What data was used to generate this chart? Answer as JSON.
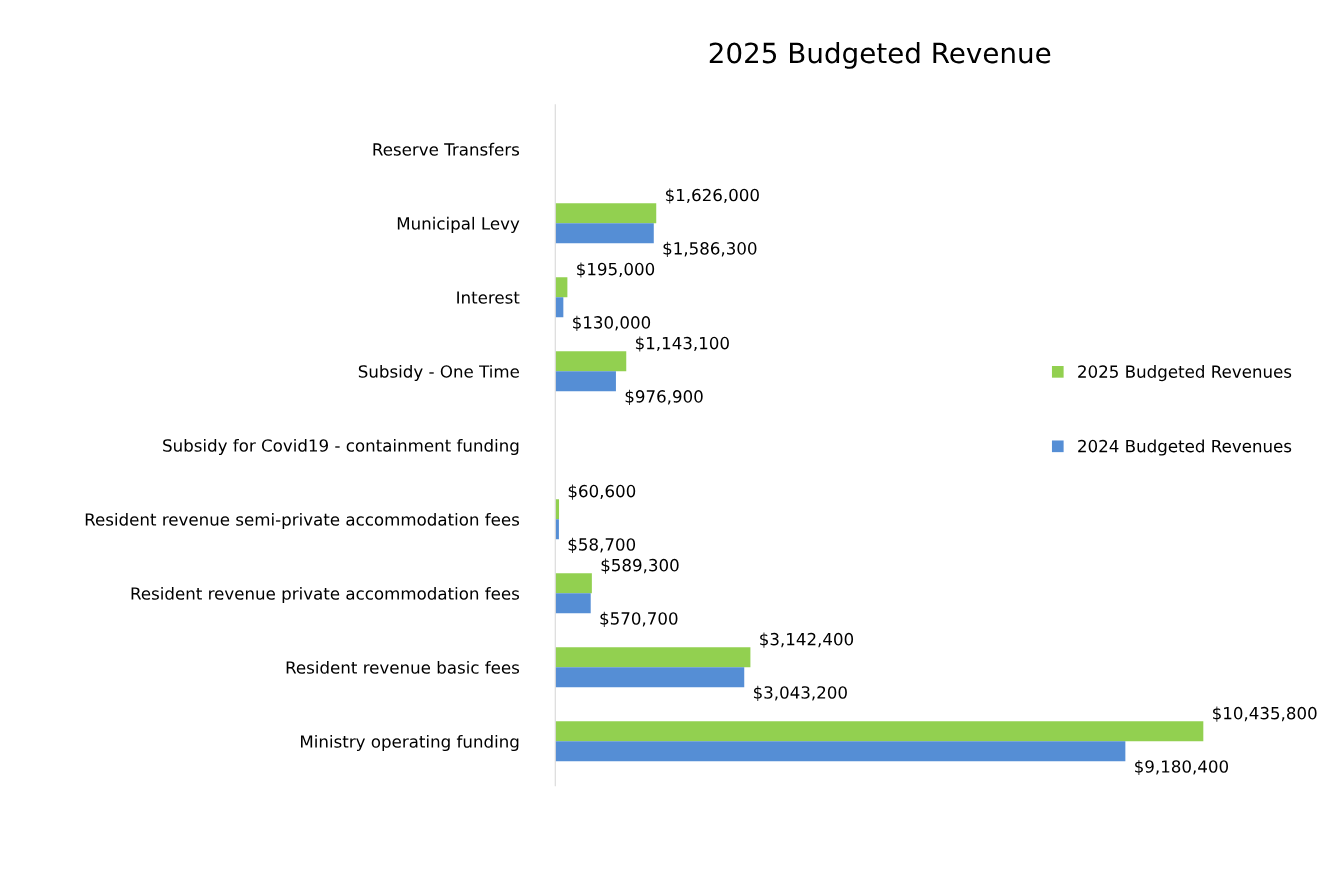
{
  "chart_data": {
    "type": "bar",
    "orientation": "horizontal",
    "title": "2025 Budgeted Revenue",
    "categories": [
      "Reserve Transfers",
      "Municipal Levy",
      "Interest",
      "Subsidy - One Time",
      "Subsidy for Covid19 - containment funding",
      "Resident revenue semi-private accommodation fees",
      "Resident revenue private accommodation fees",
      "Resident revenue basic fees",
      "Ministry operating funding"
    ],
    "series": [
      {
        "name": "2025 Budgeted Revenues",
        "color": "#92d050",
        "values": [
          null,
          1626000,
          195000,
          1143100,
          null,
          60600,
          589300,
          3142400,
          10435800
        ],
        "value_labels": [
          null,
          "$1,626,000",
          "$195,000",
          "$1,143,100",
          null,
          "$60,600",
          "$589,300",
          "$3,142,400",
          "$10,435,800"
        ]
      },
      {
        "name": "2024 Budgeted Revenues",
        "color": "#558ed5",
        "values": [
          null,
          1586300,
          130000,
          976900,
          null,
          58700,
          570700,
          3043200,
          9180400
        ],
        "value_labels": [
          null,
          "$1,586,300",
          "$130,000",
          "$976,900",
          null,
          "$58,700",
          "$570,700",
          "$3,043,200",
          "$9,180,400"
        ]
      }
    ],
    "xlim": [
      0,
      10450000
    ],
    "tick_labels": "y",
    "legend": "right",
    "grid": false
  }
}
